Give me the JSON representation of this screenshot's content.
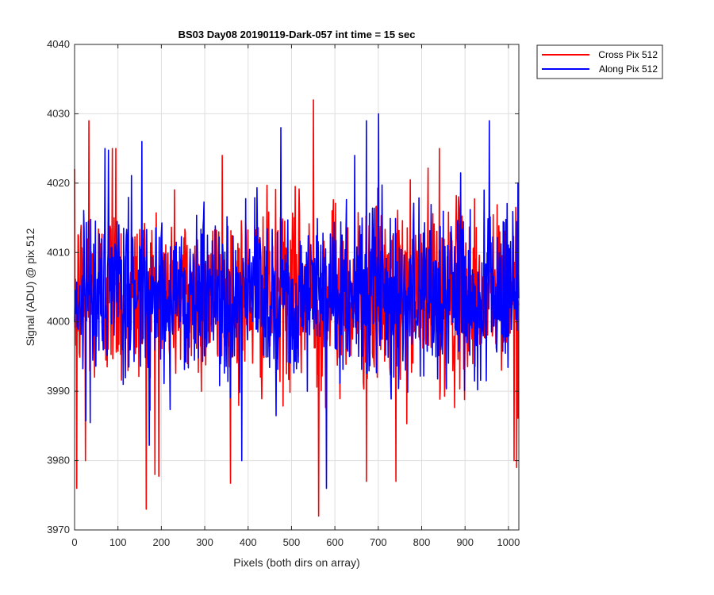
{
  "chart_data": {
    "type": "line",
    "title": "BS03 Day08 20190119-Dark-057 int time = 15 sec",
    "xlabel": "Pixels (both dirs on array)",
    "ylabel": "Signal (ADU) @ pix 512",
    "xlim": [
      0,
      1024
    ],
    "ylim": [
      3970,
      4040
    ],
    "xticks": [
      0,
      100,
      200,
      300,
      400,
      500,
      600,
      700,
      800,
      900,
      1000
    ],
    "yticks": [
      3970,
      3980,
      3990,
      4000,
      4010,
      4020,
      4030,
      4040
    ],
    "grid": true,
    "legend_position": "outside-top-right",
    "series": [
      {
        "name": "Cross Pix 512",
        "color": "#ff0000",
        "mean": 4004,
        "noise_sd": 6.5,
        "n_points": 1024,
        "notable_points": [
          {
            "x": 5,
            "y": 3976
          },
          {
            "x": 25,
            "y": 3980
          },
          {
            "x": 33,
            "y": 4029
          },
          {
            "x": 87,
            "y": 4025
          },
          {
            "x": 95,
            "y": 4025
          },
          {
            "x": 165,
            "y": 3973
          },
          {
            "x": 185,
            "y": 3978
          },
          {
            "x": 340,
            "y": 4024
          },
          {
            "x": 550,
            "y": 4032
          },
          {
            "x": 562,
            "y": 3972
          },
          {
            "x": 672,
            "y": 3977
          },
          {
            "x": 740,
            "y": 3977
          },
          {
            "x": 840,
            "y": 4025
          },
          {
            "x": 1012,
            "y": 3980
          },
          {
            "x": 1018,
            "y": 3979
          }
        ]
      },
      {
        "name": "Along Pix 512",
        "color": "#0000ff",
        "mean": 4004,
        "noise_sd": 6.0,
        "n_points": 1024,
        "notable_points": [
          {
            "x": 70,
            "y": 4025
          },
          {
            "x": 155,
            "y": 4026
          },
          {
            "x": 385,
            "y": 3980
          },
          {
            "x": 475,
            "y": 4028
          },
          {
            "x": 580,
            "y": 3976
          },
          {
            "x": 645,
            "y": 4024
          },
          {
            "x": 672,
            "y": 4029
          },
          {
            "x": 700,
            "y": 4030
          },
          {
            "x": 955,
            "y": 4029
          }
        ]
      }
    ]
  }
}
